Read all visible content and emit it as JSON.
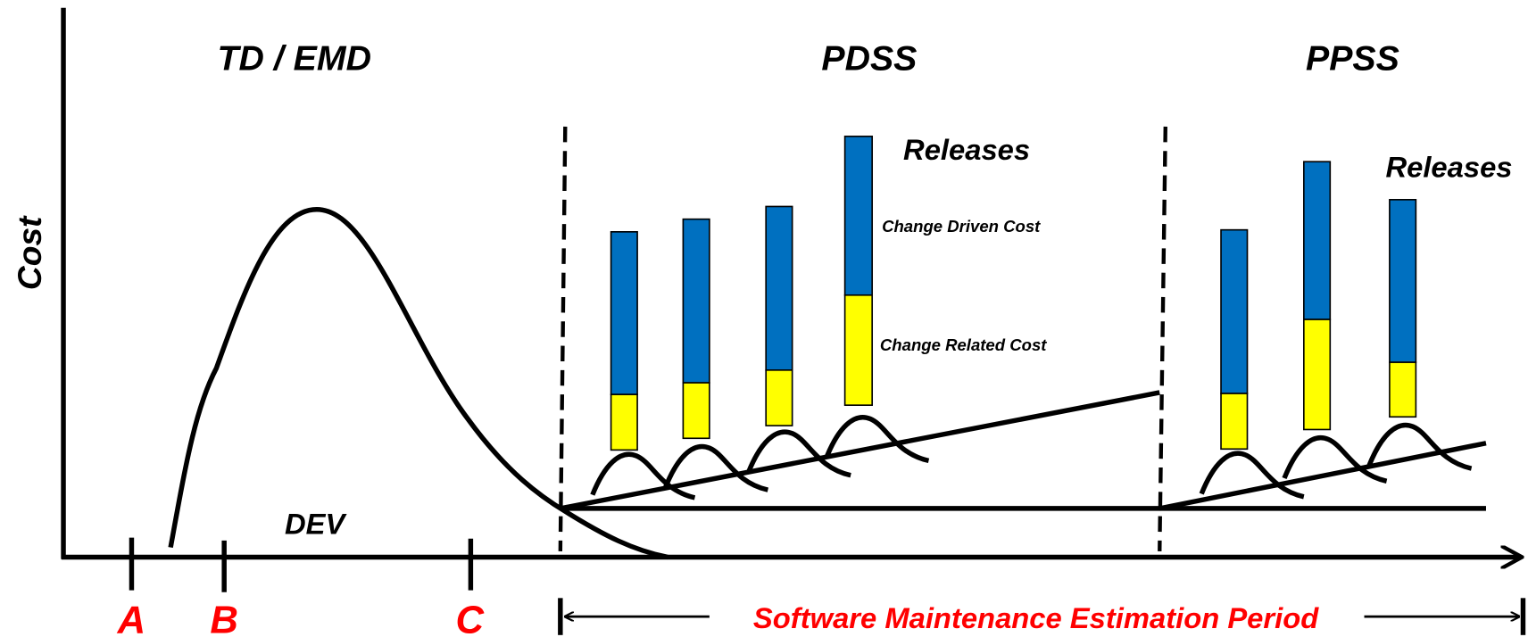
{
  "phases": {
    "development": "TD / EMD",
    "pdss": "PDSS",
    "ppss": "PPSS"
  },
  "y_axis_label": "Cost",
  "dev_label": "DEV",
  "milestones": [
    "A",
    "B",
    "C"
  ],
  "pdss_releases": {
    "label": "Releases",
    "legend_driven": "Change Driven Cost",
    "legend_related": "Change Related Cost"
  },
  "ppss_releases": {
    "label": "Releases"
  },
  "period_label": "Software Maintenance Estimation Period"
}
